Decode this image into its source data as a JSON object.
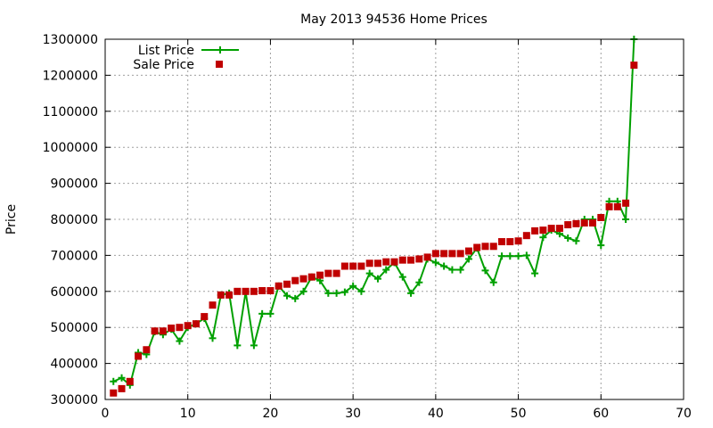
{
  "chart_data": {
    "type": "line",
    "title": "May 2013 94536 Home Prices",
    "xlabel": "",
    "ylabel": "Price",
    "xlim": [
      0,
      70
    ],
    "ylim": [
      300000,
      1300000
    ],
    "xticks": [
      "0",
      "10",
      "20",
      "30",
      "40",
      "50",
      "60",
      "70"
    ],
    "yticks": [
      "300000",
      "400000",
      "500000",
      "600000",
      "700000",
      "800000",
      "900000",
      "1000000",
      "1100000",
      "1200000",
      "1300000"
    ],
    "grid": true,
    "legend_position": "top-left",
    "x": [
      1,
      2,
      3,
      4,
      5,
      6,
      7,
      8,
      9,
      10,
      11,
      12,
      13,
      14,
      15,
      16,
      17,
      18,
      19,
      20,
      21,
      22,
      23,
      24,
      25,
      26,
      27,
      28,
      29,
      30,
      31,
      32,
      33,
      34,
      35,
      36,
      37,
      38,
      39,
      40,
      41,
      42,
      43,
      44,
      45,
      46,
      47,
      48,
      49,
      50,
      51,
      52,
      53,
      54,
      55,
      56,
      57,
      58,
      59,
      60,
      61,
      62,
      63,
      64
    ],
    "series": [
      {
        "name": "List Price",
        "style": "line+cross",
        "color": "#00a000",
        "values": [
          350000,
          360000,
          340000,
          430000,
          425000,
          488000,
          480000,
          495000,
          462000,
          500000,
          510000,
          525000,
          470000,
          590000,
          595000,
          450000,
          598000,
          450000,
          538000,
          538000,
          615000,
          588000,
          580000,
          600000,
          640000,
          630000,
          595000,
          595000,
          598000,
          615000,
          600000,
          650000,
          635000,
          660000,
          680000,
          640000,
          595000,
          625000,
          690000,
          680000,
          670000,
          660000,
          660000,
          690000,
          720000,
          658000,
          625000,
          698000,
          698000,
          698000,
          700000,
          650000,
          750000,
          770000,
          760000,
          748000,
          740000,
          800000,
          800000,
          728000,
          850000,
          850000,
          800000,
          1300000
        ]
      },
      {
        "name": "Sale Price",
        "style": "square",
        "color": "#c00000",
        "values": [
          318000,
          330000,
          350000,
          420000,
          438000,
          490000,
          490000,
          498000,
          500000,
          505000,
          510000,
          530000,
          562000,
          590000,
          590000,
          600000,
          600000,
          600000,
          602000,
          602000,
          615000,
          620000,
          630000,
          635000,
          640000,
          645000,
          650000,
          650000,
          670000,
          670000,
          670000,
          678000,
          678000,
          682000,
          682000,
          687000,
          687000,
          690000,
          695000,
          705000,
          705000,
          705000,
          705000,
          712000,
          722000,
          725000,
          725000,
          738000,
          738000,
          740000,
          755000,
          768000,
          770000,
          775000,
          775000,
          785000,
          788000,
          790000,
          790000,
          805000,
          835000,
          835000,
          845000,
          1228000
        ]
      }
    ]
  }
}
